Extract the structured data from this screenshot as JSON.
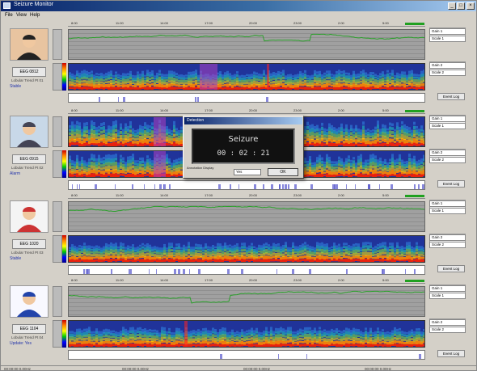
{
  "window": {
    "title": "Seizure Monitor",
    "buttons": {
      "minimize": "_",
      "maximize": "□",
      "close": "×"
    }
  },
  "menu": [
    "File",
    "View",
    "Help"
  ],
  "colors": {
    "spectrogram_bg": "#20339a",
    "trend_line": "#2ca02c",
    "seizure_mark": "#b040c0",
    "artifact_mark": "#ff2020"
  },
  "panels": [
    {
      "ruler_ticks": [
        "8:00",
        "11:00",
        "14:00",
        "17:00",
        "20:00",
        "23:00",
        "2:00",
        "5:00"
      ],
      "left_button": "EEG 0812",
      "caption": "Lobular Trend  Pt 01",
      "status": "Stable",
      "right_controls": [
        "Gain 1",
        "Scale 1",
        "Gain 2",
        "Scale 2"
      ],
      "event_button": "Event Log"
    },
    {
      "ruler_ticks": [
        "8:00",
        "11:00",
        "14:00",
        "17:00",
        "20:00",
        "23:00",
        "2:00",
        "5:00"
      ],
      "left_button": "EEG 0915",
      "caption": "Lobular Trend  Pt 02",
      "status": "Alarm",
      "right_controls": [
        "Gain 1",
        "Scale 1",
        "Gain 2",
        "Scale 2"
      ],
      "event_button": "Event Log"
    },
    {
      "ruler_ticks": [
        "8:00",
        "11:00",
        "14:00",
        "17:00",
        "20:00",
        "23:00",
        "2:00",
        "5:00"
      ],
      "left_button": "EEG 1020",
      "caption": "Lobular Trend  Pt 03",
      "status": "Stable",
      "right_controls": [
        "Gain 1",
        "Scale 1",
        "Gain 2",
        "Scale 2"
      ],
      "event_button": "Event Log"
    },
    {
      "ruler_ticks": [
        "8:00",
        "11:00",
        "14:00",
        "17:00",
        "20:00",
        "23:00",
        "2:00",
        "5:00"
      ],
      "left_button": "EEG 1104",
      "caption": "Lobular Trend  Pt 04",
      "status": "Update: Yes",
      "right_controls": [
        "Gain 1",
        "Scale 1",
        "Gain 2",
        "Scale 2"
      ],
      "event_button": "Event Log"
    }
  ],
  "dialog": {
    "title": "Detection",
    "event": "Seizure",
    "time": "00 : 02 : 21",
    "label": "Annotation Display",
    "field": "Yes",
    "ok_label": "OK"
  },
  "statusbar": [
    "00:00:00 0.00Hz",
    "00:00:00 0.00Hz",
    "00:00:00 0.00Hz",
    "00:00:00 0.00Hz"
  ]
}
